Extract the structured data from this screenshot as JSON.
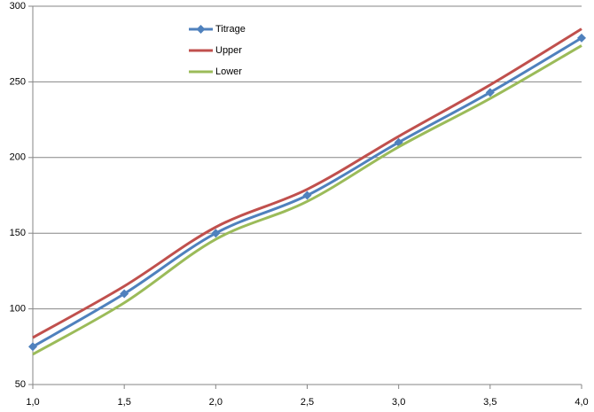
{
  "chart_data": {
    "type": "line",
    "x": [
      1,
      1.5,
      2,
      2.5,
      3,
      3.5,
      4
    ],
    "series": [
      {
        "name": "Titrage",
        "color": "#4f81bd",
        "marker": "diamond",
        "values": [
          75,
          110,
          150,
          175,
          210,
          243,
          279
        ]
      },
      {
        "name": "Upper",
        "color": "#c0504d",
        "values": [
          81,
          115,
          154,
          179,
          214,
          248,
          285
        ]
      },
      {
        "name": "Lower",
        "color": "#9bbb59",
        "values": [
          70,
          104,
          146,
          171,
          207,
          239,
          274
        ]
      }
    ],
    "xlim": [
      1,
      4
    ],
    "xticks": [
      {
        "value": 1,
        "label": "1,0"
      },
      {
        "value": 1.5,
        "label": "1,5"
      },
      {
        "value": 2,
        "label": "2,0"
      },
      {
        "value": 2.5,
        "label": "2,5"
      },
      {
        "value": 3,
        "label": "3,0"
      },
      {
        "value": 3.5,
        "label": "3,5"
      },
      {
        "value": 4,
        "label": "4,0"
      }
    ],
    "ylim": [
      50,
      300
    ],
    "yticks": [
      50,
      100,
      150,
      200,
      250,
      300
    ],
    "grid": true,
    "smooth": true,
    "legend": "top-left"
  }
}
